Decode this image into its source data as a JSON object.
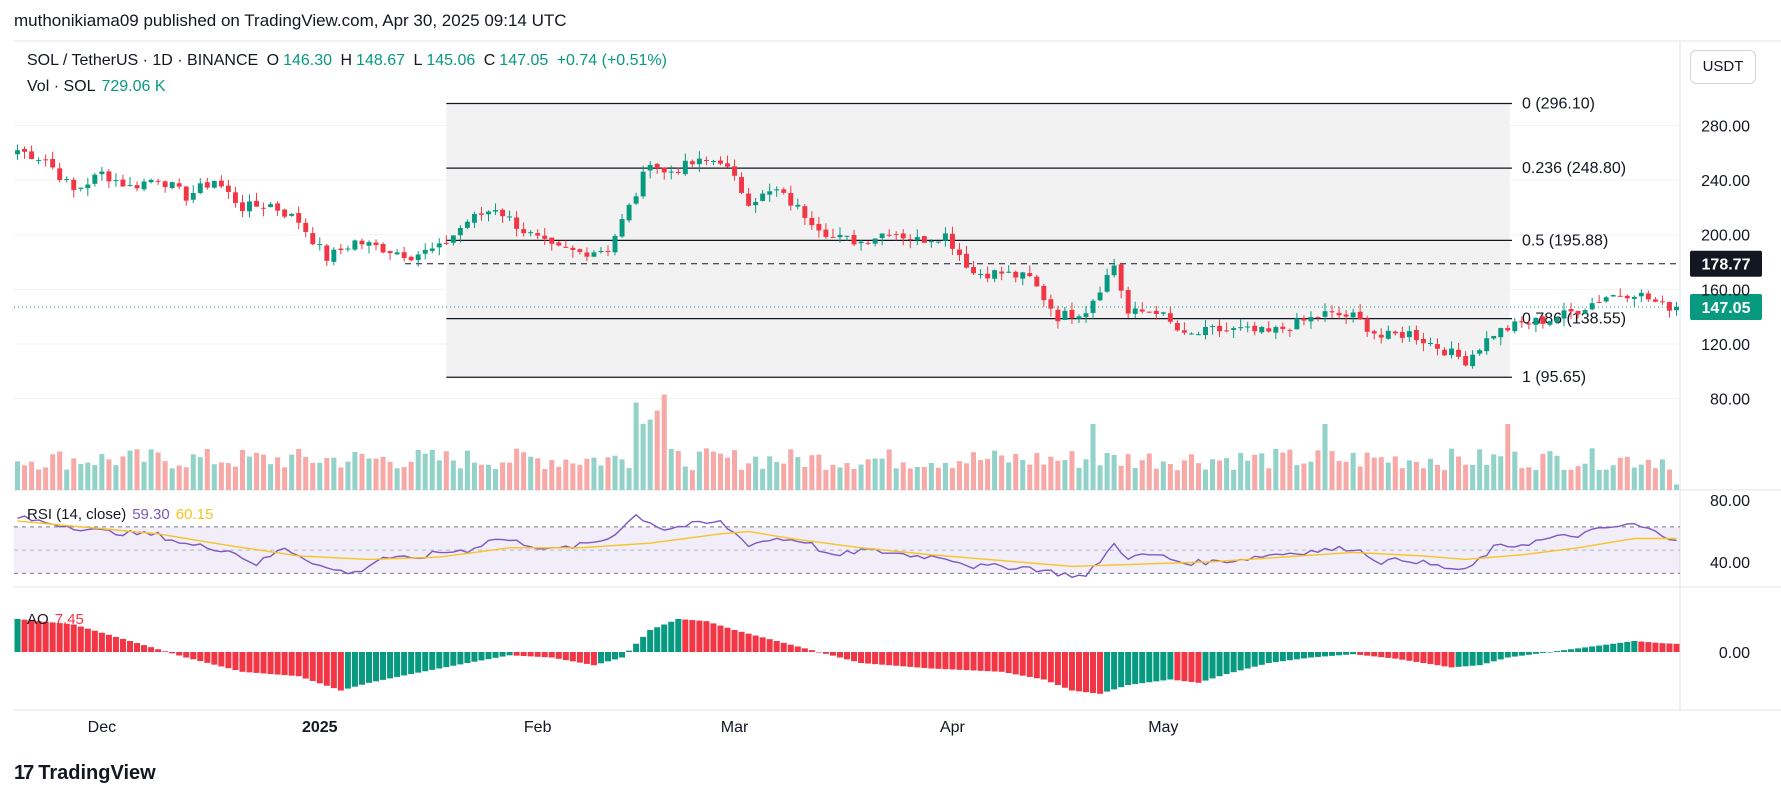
{
  "header": {
    "published_by": "muthonikiama09 published on TradingView.com, Apr 30, 2025 09:14 UTC"
  },
  "legend": {
    "symbol": "SOL / TetherUS · 1D · BINANCE",
    "open_label": "O",
    "open": "146.30",
    "high_label": "H",
    "high": "148.67",
    "low_label": "L",
    "low": "145.06",
    "close_label": "C",
    "close": "147.05",
    "change": "+0.74 (+0.51%)",
    "vol_label": "Vol · SOL",
    "vol_value": "729.06 K"
  },
  "rsi_legend": {
    "label": "RSI (14, close)",
    "rsi": "59.30",
    "ma": "60.15"
  },
  "ao_legend": {
    "label": "AO",
    "value": "7.45"
  },
  "currency_button": "USDT",
  "brand": {
    "logo": "17",
    "name": "TradingView"
  },
  "colors": {
    "up": "#089981",
    "down": "#f23645",
    "up_vol": "#92d2c8",
    "down_vol": "#f7a9a7",
    "rsi": "#7e57c2",
    "rsi_ma": "#f7c325",
    "fib_fill": "#f2f2f2"
  },
  "chart_data": {
    "type": "candlestick",
    "price_axis": {
      "ticks": [
        80,
        120,
        160,
        200,
        240,
        280
      ],
      "tick_labels": [
        "80.00",
        "120.00",
        "160.00",
        "200.00",
        "240.00",
        "280.00"
      ],
      "range": [
        68,
        306
      ]
    },
    "rsi_axis": {
      "ticks": [
        40,
        80
      ],
      "tick_labels": [
        "40.00",
        "80.00"
      ],
      "band": [
        30,
        70
      ],
      "mid": 50
    },
    "ao_axis": {
      "ticks": [
        0
      ],
      "tick_labels": [
        "0.00"
      ]
    },
    "x_labels": [
      "Dec",
      "2025",
      "Feb",
      "Mar",
      "Apr",
      "May"
    ],
    "x_label_dates": [
      "2024-12-01",
      "2025-01-01",
      "2025-02-01",
      "2025-03-01",
      "2025-04-01",
      "2025-05-01"
    ],
    "start_date": "2024-11-19",
    "current_price": {
      "value": 147.05,
      "label": "147.05"
    },
    "dashed_level": {
      "value": 178.77,
      "label": "178.77"
    },
    "fib_start_date": "2025-01-19",
    "fib_levels": [
      {
        "level": 0,
        "value": 296.1,
        "label": "0 (296.10)"
      },
      {
        "level": 0.236,
        "value": 248.8,
        "label": "0.236 (248.80)"
      },
      {
        "level": 0.5,
        "value": 195.88,
        "label": "0.5 (195.88)"
      },
      {
        "level": 0.786,
        "value": 138.55,
        "label": "0.786 (138.55)"
      },
      {
        "level": 1,
        "value": 95.65,
        "label": "1 (95.65)"
      }
    ],
    "close_keyframes": [
      [
        0,
        262
      ],
      [
        4,
        255
      ],
      [
        8,
        232
      ],
      [
        12,
        245
      ],
      [
        16,
        235
      ],
      [
        20,
        242
      ],
      [
        24,
        228
      ],
      [
        28,
        240
      ],
      [
        32,
        220
      ],
      [
        36,
        222
      ],
      [
        40,
        210
      ],
      [
        44,
        183
      ],
      [
        48,
        195
      ],
      [
        52,
        190
      ],
      [
        56,
        185
      ],
      [
        60,
        190
      ],
      [
        64,
        210
      ],
      [
        68,
        220
      ],
      [
        72,
        203
      ],
      [
        76,
        190
      ],
      [
        80,
        187
      ],
      [
        84,
        190
      ],
      [
        88,
        230
      ],
      [
        90,
        255
      ],
      [
        92,
        245
      ],
      [
        96,
        252
      ],
      [
        100,
        255
      ],
      [
        104,
        225
      ],
      [
        108,
        232
      ],
      [
        112,
        215
      ],
      [
        116,
        198
      ],
      [
        120,
        195
      ],
      [
        124,
        203
      ],
      [
        128,
        196
      ],
      [
        132,
        200
      ],
      [
        136,
        172
      ],
      [
        140,
        172
      ],
      [
        144,
        168
      ],
      [
        148,
        140
      ],
      [
        152,
        145
      ],
      [
        156,
        178
      ],
      [
        158,
        142
      ],
      [
        162,
        145
      ],
      [
        166,
        125
      ],
      [
        170,
        130
      ],
      [
        174,
        130
      ],
      [
        178,
        128
      ],
      [
        182,
        135
      ],
      [
        186,
        142
      ],
      [
        190,
        140
      ],
      [
        194,
        125
      ],
      [
        198,
        128
      ],
      [
        202,
        118
      ],
      [
        206,
        108
      ],
      [
        210,
        128
      ],
      [
        214,
        135
      ],
      [
        218,
        138
      ],
      [
        222,
        145
      ],
      [
        226,
        155
      ],
      [
        230,
        158
      ],
      [
        234,
        148
      ],
      [
        236,
        147.05
      ]
    ],
    "rsi_keyframes": [
      [
        0,
        78
      ],
      [
        6,
        72
      ],
      [
        12,
        66
      ],
      [
        20,
        63
      ],
      [
        24,
        55
      ],
      [
        30,
        50
      ],
      [
        34,
        38
      ],
      [
        38,
        52
      ],
      [
        44,
        34
      ],
      [
        48,
        30
      ],
      [
        52,
        44
      ],
      [
        56,
        42
      ],
      [
        60,
        48
      ],
      [
        64,
        50
      ],
      [
        68,
        60
      ],
      [
        72,
        56
      ],
      [
        76,
        50
      ],
      [
        80,
        54
      ],
      [
        84,
        60
      ],
      [
        88,
        80
      ],
      [
        92,
        68
      ],
      [
        96,
        72
      ],
      [
        100,
        74
      ],
      [
        104,
        55
      ],
      [
        108,
        60
      ],
      [
        112,
        58
      ],
      [
        116,
        44
      ],
      [
        120,
        50
      ],
      [
        124,
        48
      ],
      [
        128,
        45
      ],
      [
        132,
        44
      ],
      [
        136,
        36
      ],
      [
        140,
        36
      ],
      [
        144,
        35
      ],
      [
        148,
        30
      ],
      [
        152,
        27
      ],
      [
        156,
        55
      ],
      [
        158,
        44
      ],
      [
        162,
        46
      ],
      [
        166,
        39
      ],
      [
        170,
        40
      ],
      [
        174,
        42
      ],
      [
        178,
        46
      ],
      [
        182,
        48
      ],
      [
        186,
        50
      ],
      [
        190,
        52
      ],
      [
        194,
        40
      ],
      [
        198,
        42
      ],
      [
        202,
        36
      ],
      [
        206,
        32
      ],
      [
        210,
        52
      ],
      [
        214,
        55
      ],
      [
        218,
        60
      ],
      [
        222,
        63
      ],
      [
        226,
        69
      ],
      [
        230,
        72
      ],
      [
        234,
        63
      ],
      [
        236,
        60
      ]
    ],
    "rsi_ma_keyframes": [
      [
        0,
        75
      ],
      [
        20,
        64
      ],
      [
        30,
        54
      ],
      [
        40,
        45
      ],
      [
        50,
        42
      ],
      [
        60,
        44
      ],
      [
        70,
        52
      ],
      [
        80,
        52
      ],
      [
        90,
        56
      ],
      [
        100,
        64
      ],
      [
        104,
        66
      ],
      [
        110,
        60
      ],
      [
        120,
        52
      ],
      [
        130,
        46
      ],
      [
        140,
        41
      ],
      [
        150,
        36
      ],
      [
        160,
        38
      ],
      [
        170,
        40
      ],
      [
        180,
        44
      ],
      [
        190,
        48
      ],
      [
        200,
        45
      ],
      [
        206,
        42
      ],
      [
        214,
        46
      ],
      [
        222,
        52
      ],
      [
        230,
        60
      ],
      [
        236,
        60
      ]
    ],
    "ao_keyframes": [
      [
        0,
        30
      ],
      [
        8,
        25
      ],
      [
        16,
        10
      ],
      [
        24,
        -5
      ],
      [
        32,
        -18
      ],
      [
        40,
        -22
      ],
      [
        46,
        -35
      ],
      [
        50,
        -28
      ],
      [
        56,
        -20
      ],
      [
        64,
        -10
      ],
      [
        70,
        -3
      ],
      [
        76,
        -5
      ],
      [
        82,
        -12
      ],
      [
        86,
        -5
      ],
      [
        90,
        20
      ],
      [
        94,
        30
      ],
      [
        98,
        28
      ],
      [
        102,
        20
      ],
      [
        108,
        10
      ],
      [
        114,
        0
      ],
      [
        120,
        -10
      ],
      [
        130,
        -15
      ],
      [
        140,
        -18
      ],
      [
        146,
        -25
      ],
      [
        150,
        -35
      ],
      [
        154,
        -38
      ],
      [
        158,
        -30
      ],
      [
        164,
        -25
      ],
      [
        168,
        -28
      ],
      [
        172,
        -20
      ],
      [
        178,
        -10
      ],
      [
        184,
        -5
      ],
      [
        190,
        -2
      ],
      [
        196,
        -6
      ],
      [
        200,
        -10
      ],
      [
        204,
        -14
      ],
      [
        208,
        -12
      ],
      [
        212,
        -5
      ],
      [
        218,
        0
      ],
      [
        224,
        5
      ],
      [
        230,
        10
      ],
      [
        234,
        8
      ],
      [
        236,
        7.45
      ]
    ]
  }
}
